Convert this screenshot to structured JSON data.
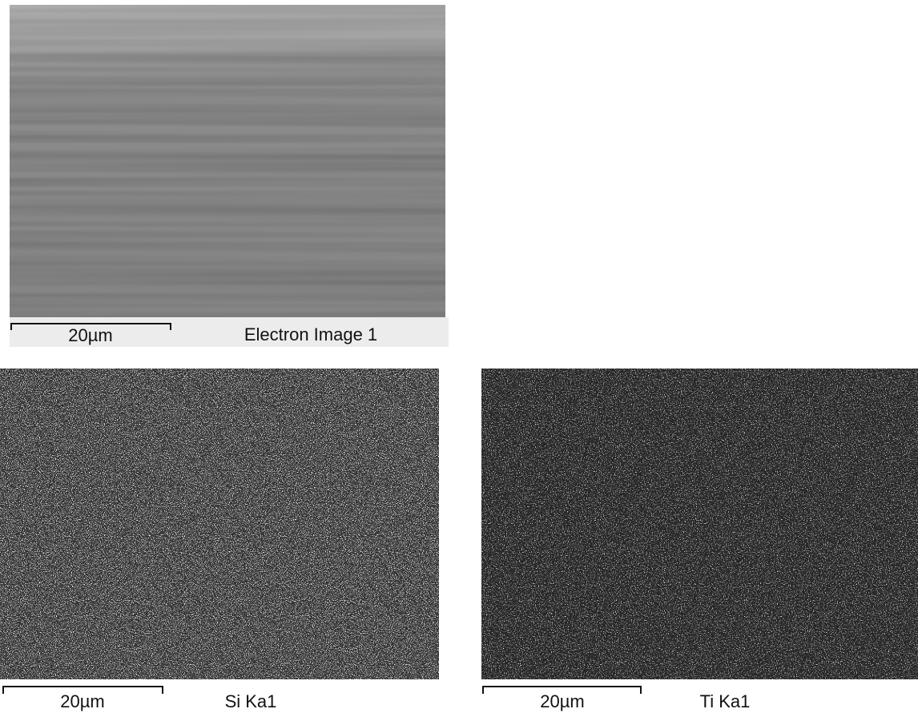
{
  "panels": [
    {
      "caption": "Electron Image 1",
      "scale_bar": "20µm"
    },
    {
      "caption": "Si Ka1",
      "scale_bar": "20µm"
    },
    {
      "caption": "Ti Ka1",
      "scale_bar": "20µm"
    }
  ]
}
